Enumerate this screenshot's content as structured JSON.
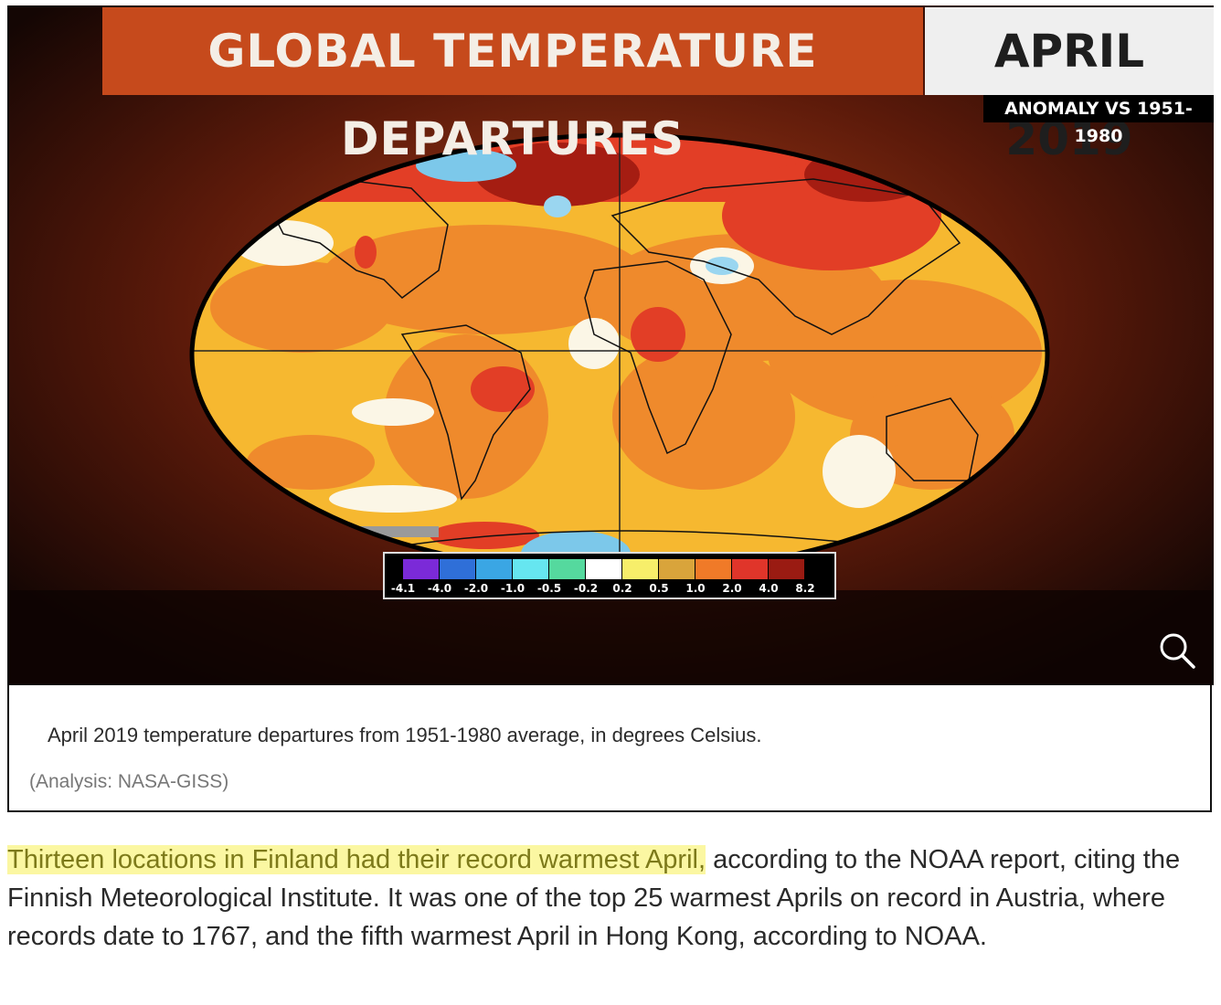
{
  "figure": {
    "title": "GLOBAL TEMPERATURE DEPARTURES",
    "date": "APRIL 2019",
    "subtitle": "ANOMALY VS 1951-1980",
    "legend": {
      "colors": [
        "#7b2ad8",
        "#2f6fd8",
        "#3aa6e4",
        "#66e6f0",
        "#55d99e",
        "#ffffff",
        "#f7ee6a",
        "#d9a43b",
        "#f07a28",
        "#e0352a",
        "#9a1b12"
      ],
      "ticks": [
        "-4.1",
        "-4.0",
        "-2.0",
        "-1.0",
        "-0.5",
        "-0.2",
        "0.2",
        "0.5",
        "1.0",
        "2.0",
        "4.0",
        "8.2"
      ]
    },
    "zoom_icon": "magnifier-icon",
    "caption": "April 2019 temperature departures from 1951-1980 average, in degrees Celsius.",
    "credit": "(Analysis: NASA-GISS)"
  },
  "article": {
    "highlighted": "Thirteen locations in Finland had their record warmest April,",
    "rest": " according to the NOAA report, citing the Finnish Meteorological Institute. It was one of the top 25 warmest Aprils on record in Austria, where records date to 1767, and the fifth warmest April in Hong Kong, according to NOAA."
  }
}
